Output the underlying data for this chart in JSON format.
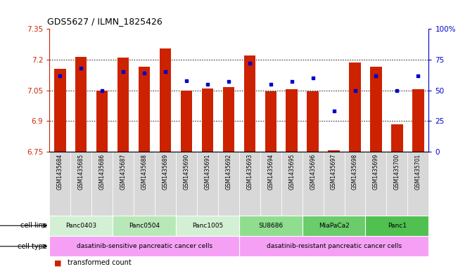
{
  "title": "GDS5627 / ILMN_1825426",
  "samples": [
    "GSM1435684",
    "GSM1435685",
    "GSM1435686",
    "GSM1435687",
    "GSM1435688",
    "GSM1435689",
    "GSM1435690",
    "GSM1435691",
    "GSM1435692",
    "GSM1435693",
    "GSM1435694",
    "GSM1435695",
    "GSM1435696",
    "GSM1435697",
    "GSM1435698",
    "GSM1435699",
    "GSM1435700",
    "GSM1435701"
  ],
  "bar_heights": [
    7.155,
    7.215,
    7.05,
    7.21,
    7.165,
    7.255,
    7.05,
    7.06,
    7.065,
    7.22,
    7.045,
    7.055,
    7.045,
    6.757,
    7.185,
    7.165,
    6.885,
    7.055
  ],
  "percentile_ranks": [
    62,
    68,
    50,
    65,
    64,
    65,
    58,
    55,
    57,
    72,
    55,
    57,
    60,
    33,
    50,
    62,
    50,
    62
  ],
  "ylim_left": [
    6.75,
    7.35
  ],
  "ylim_right": [
    0,
    100
  ],
  "yticks_left": [
    6.75,
    6.9,
    7.05,
    7.2,
    7.35
  ],
  "yticks_right": [
    0,
    25,
    50,
    75,
    100
  ],
  "ytick_labels_left": [
    "6.75",
    "6.9",
    "7.05",
    "7.2",
    "7.35"
  ],
  "ytick_labels_right": [
    "0",
    "25",
    "50",
    "75",
    "100%"
  ],
  "bar_color": "#cc2200",
  "dot_color": "#0000cc",
  "bar_bottom": 6.75,
  "cell_lines": [
    {
      "label": "Panc0403",
      "start": 0,
      "end": 3,
      "color": "#d4f0d4"
    },
    {
      "label": "Panc0504",
      "start": 3,
      "end": 6,
      "color": "#b8e8b8"
    },
    {
      "label": "Panc1005",
      "start": 6,
      "end": 9,
      "color": "#d4f0d4"
    },
    {
      "label": "SU8686",
      "start": 9,
      "end": 12,
      "color": "#90dd90"
    },
    {
      "label": "MiaPaCa2",
      "start": 12,
      "end": 15,
      "color": "#6acc6a"
    },
    {
      "label": "Panc1",
      "start": 15,
      "end": 18,
      "color": "#50c050"
    }
  ],
  "cell_types": [
    {
      "label": "dasatinib-sensitive pancreatic cancer cells",
      "start": 0,
      "end": 9,
      "color": "#f5a0f5"
    },
    {
      "label": "dasatinib-resistant pancreatic cancer cells",
      "start": 9,
      "end": 18,
      "color": "#f5a0f5"
    }
  ],
  "bg_color": "#ffffff"
}
